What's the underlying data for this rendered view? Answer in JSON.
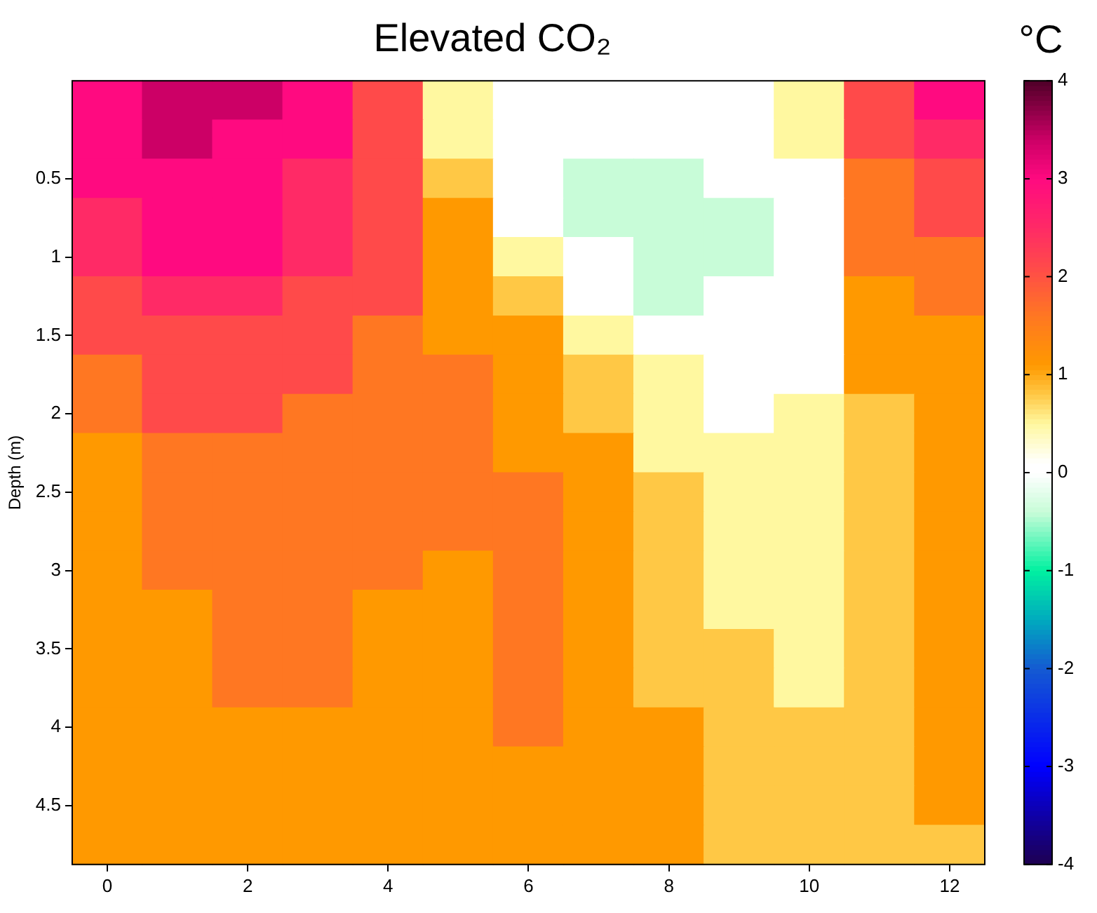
{
  "chart_data": {
    "type": "heatmap",
    "title": "Elevated CO₂",
    "ylabel": "Depth (m)",
    "clabel": "°C",
    "categories": [
      "0",
      null,
      "2",
      null,
      "4",
      null,
      "6",
      null,
      "8",
      null,
      "10",
      null,
      "12"
    ],
    "y_categories": [
      null,
      null,
      "0.5",
      null,
      "1",
      null,
      "1.5",
      null,
      "2",
      null,
      "2.5",
      null,
      "3",
      null,
      "3.5",
      null,
      "4",
      null,
      "4.5",
      null
    ],
    "cells": [
      [
        3.0,
        3.4,
        3.4,
        3.0,
        2.1,
        0.5,
        0.1,
        0.1,
        0.1,
        0.1,
        0.5,
        2.1,
        3.0
      ],
      [
        3.0,
        3.4,
        3.0,
        3.0,
        2.1,
        0.5,
        0.1,
        0.1,
        0.1,
        0.1,
        0.5,
        2.1,
        2.5
      ],
      [
        3.0,
        3.0,
        3.0,
        2.5,
        2.1,
        0.8,
        0.1,
        -0.4,
        -0.4,
        0.1,
        0.1,
        1.6,
        2.1
      ],
      [
        2.5,
        3.0,
        3.0,
        2.5,
        2.1,
        1.1,
        0.1,
        -0.4,
        -0.4,
        -0.4,
        0.1,
        1.6,
        2.1
      ],
      [
        2.5,
        3.0,
        3.0,
        2.5,
        2.1,
        1.1,
        0.5,
        0.1,
        -0.4,
        -0.4,
        0.1,
        1.6,
        1.6
      ],
      [
        2.1,
        2.5,
        2.5,
        2.1,
        2.1,
        1.1,
        0.8,
        0.1,
        -0.4,
        0.1,
        0.1,
        1.1,
        1.6
      ],
      [
        2.1,
        2.1,
        2.1,
        2.1,
        1.6,
        1.1,
        1.1,
        0.5,
        0.1,
        0.1,
        0.1,
        1.1,
        1.1
      ],
      [
        1.6,
        2.1,
        2.1,
        2.1,
        1.6,
        1.6,
        1.1,
        0.8,
        0.5,
        0.1,
        0.1,
        1.1,
        1.1
      ],
      [
        1.6,
        2.1,
        2.1,
        1.6,
        1.6,
        1.6,
        1.1,
        0.8,
        0.5,
        0.1,
        0.5,
        0.8,
        1.1
      ],
      [
        1.1,
        1.6,
        1.6,
        1.6,
        1.6,
        1.6,
        1.1,
        1.1,
        0.5,
        0.5,
        0.5,
        0.8,
        1.1
      ],
      [
        1.1,
        1.6,
        1.6,
        1.6,
        1.6,
        1.6,
        1.6,
        1.1,
        0.8,
        0.5,
        0.5,
        0.8,
        1.1
      ],
      [
        1.1,
        1.6,
        1.6,
        1.6,
        1.6,
        1.6,
        1.6,
        1.1,
        0.8,
        0.5,
        0.5,
        0.8,
        1.1
      ],
      [
        1.1,
        1.6,
        1.6,
        1.6,
        1.6,
        1.1,
        1.6,
        1.1,
        0.8,
        0.5,
        0.5,
        0.8,
        1.1
      ],
      [
        1.1,
        1.1,
        1.6,
        1.6,
        1.1,
        1.1,
        1.6,
        1.1,
        0.8,
        0.5,
        0.5,
        0.8,
        1.1
      ],
      [
        1.1,
        1.1,
        1.6,
        1.6,
        1.1,
        1.1,
        1.6,
        1.1,
        0.8,
        0.8,
        0.5,
        0.8,
        1.1
      ],
      [
        1.1,
        1.1,
        1.6,
        1.6,
        1.1,
        1.1,
        1.6,
        1.1,
        0.8,
        0.8,
        0.5,
        0.8,
        1.1
      ],
      [
        1.1,
        1.1,
        1.1,
        1.1,
        1.1,
        1.1,
        1.6,
        1.1,
        1.1,
        0.8,
        0.8,
        0.8,
        1.1
      ],
      [
        1.1,
        1.1,
        1.1,
        1.1,
        1.1,
        1.1,
        1.1,
        1.1,
        1.1,
        0.8,
        0.8,
        0.8,
        1.1
      ],
      [
        1.1,
        1.1,
        1.1,
        1.1,
        1.1,
        1.1,
        1.1,
        1.1,
        1.1,
        0.8,
        0.8,
        0.8,
        1.1
      ],
      [
        1.1,
        1.1,
        1.1,
        1.1,
        1.1,
        1.1,
        1.1,
        1.1,
        1.1,
        0.8,
        0.8,
        0.8,
        0.8
      ]
    ],
    "clim": [
      -4,
      4
    ],
    "cticks": [
      -4,
      -3,
      -2,
      -1,
      0,
      1,
      2,
      3,
      4
    ]
  }
}
